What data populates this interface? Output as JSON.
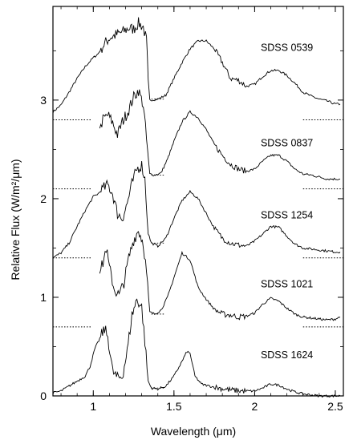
{
  "chart_data": {
    "type": "line",
    "xlabel": "Wavelength (μm)",
    "ylabel": "Relative Flux (W/m²/μm)",
    "xlim": [
      0.75,
      2.55
    ],
    "ylim": [
      0,
      3.95
    ],
    "x_ticks": [
      {
        "value": 1,
        "label": "1"
      },
      {
        "value": 1.5,
        "label": "1.5"
      },
      {
        "value": 2,
        "label": "2"
      },
      {
        "value": 2.5,
        "label": "2.5"
      }
    ],
    "y_ticks": [
      {
        "value": 0,
        "label": "0"
      },
      {
        "value": 1,
        "label": "1"
      },
      {
        "value": 2,
        "label": "2"
      },
      {
        "value": 3,
        "label": "3"
      }
    ],
    "grid": false,
    "legend": "none",
    "series": [
      {
        "name": "SDSS 0539",
        "offset": 2.8,
        "label_pos": [
          2.2,
          3.5
        ],
        "points": [
          [
            0.75,
            2.88
          ],
          [
            0.8,
            2.95
          ],
          [
            0.85,
            3.08
          ],
          [
            0.9,
            3.22
          ],
          [
            0.95,
            3.34
          ],
          [
            1.0,
            3.43
          ],
          [
            1.03,
            3.47
          ],
          [
            1.06,
            3.55
          ],
          [
            1.1,
            3.63
          ],
          [
            1.14,
            3.66
          ],
          [
            1.18,
            3.69
          ],
          [
            1.22,
            3.73
          ],
          [
            1.25,
            3.72
          ],
          [
            1.28,
            3.78
          ],
          [
            1.31,
            3.74
          ],
          [
            1.33,
            3.6
          ],
          [
            1.34,
            3.2
          ],
          [
            1.35,
            3.0
          ],
          [
            1.4,
            3.01
          ],
          [
            1.45,
            3.05
          ],
          [
            1.5,
            3.22
          ],
          [
            1.55,
            3.38
          ],
          [
            1.6,
            3.52
          ],
          [
            1.65,
            3.6
          ],
          [
            1.7,
            3.6
          ],
          [
            1.75,
            3.52
          ],
          [
            1.8,
            3.38
          ],
          [
            1.85,
            3.22
          ],
          [
            1.9,
            3.2
          ],
          [
            1.95,
            3.14
          ],
          [
            2.0,
            3.16
          ],
          [
            2.05,
            3.24
          ],
          [
            2.1,
            3.3
          ],
          [
            2.15,
            3.3
          ],
          [
            2.2,
            3.25
          ],
          [
            2.25,
            3.17
          ],
          [
            2.3,
            3.08
          ],
          [
            2.35,
            3.04
          ],
          [
            2.4,
            3.01
          ],
          [
            2.45,
            2.99
          ],
          [
            2.5,
            2.96
          ],
          [
            2.53,
            2.96
          ]
        ]
      },
      {
        "name": "SDSS 0837",
        "offset": 2.1,
        "label_pos": [
          2.2,
          2.53
        ],
        "points": [
          [
            1.04,
            2.72
          ],
          [
            1.06,
            2.8
          ],
          [
            1.09,
            2.85
          ],
          [
            1.12,
            2.77
          ],
          [
            1.15,
            2.65
          ],
          [
            1.18,
            2.78
          ],
          [
            1.22,
            2.9
          ],
          [
            1.25,
            3.03
          ],
          [
            1.28,
            3.1
          ],
          [
            1.31,
            2.95
          ],
          [
            1.33,
            2.6
          ],
          [
            1.35,
            2.25
          ],
          [
            1.38,
            2.24
          ],
          [
            1.42,
            2.26
          ],
          [
            1.46,
            2.4
          ],
          [
            1.5,
            2.58
          ],
          [
            1.55,
            2.78
          ],
          [
            1.6,
            2.88
          ],
          [
            1.65,
            2.82
          ],
          [
            1.7,
            2.7
          ],
          [
            1.75,
            2.55
          ],
          [
            1.8,
            2.44
          ],
          [
            1.85,
            2.35
          ],
          [
            1.9,
            2.3
          ],
          [
            1.95,
            2.28
          ],
          [
            2.0,
            2.3
          ],
          [
            2.05,
            2.38
          ],
          [
            2.1,
            2.44
          ],
          [
            2.15,
            2.44
          ],
          [
            2.2,
            2.38
          ],
          [
            2.25,
            2.3
          ],
          [
            2.3,
            2.25
          ],
          [
            2.35,
            2.24
          ],
          [
            2.4,
            2.22
          ],
          [
            2.45,
            2.2
          ],
          [
            2.5,
            2.2
          ],
          [
            2.53,
            2.2
          ]
        ]
      },
      {
        "name": "SDSS 1254",
        "offset": 1.4,
        "label_pos": [
          2.2,
          1.8
        ],
        "points": [
          [
            0.75,
            1.4
          ],
          [
            0.8,
            1.45
          ],
          [
            0.85,
            1.55
          ],
          [
            0.9,
            1.72
          ],
          [
            0.95,
            1.88
          ],
          [
            1.0,
            2.02
          ],
          [
            1.03,
            2.05
          ],
          [
            1.06,
            2.1
          ],
          [
            1.09,
            2.14
          ],
          [
            1.12,
            2.05
          ],
          [
            1.15,
            1.85
          ],
          [
            1.18,
            1.8
          ],
          [
            1.21,
            1.95
          ],
          [
            1.24,
            2.15
          ],
          [
            1.27,
            2.3
          ],
          [
            1.3,
            2.34
          ],
          [
            1.32,
            2.2
          ],
          [
            1.34,
            1.65
          ],
          [
            1.36,
            1.55
          ],
          [
            1.4,
            1.52
          ],
          [
            1.45,
            1.6
          ],
          [
            1.5,
            1.8
          ],
          [
            1.55,
            1.98
          ],
          [
            1.6,
            2.07
          ],
          [
            1.65,
            2.0
          ],
          [
            1.7,
            1.85
          ],
          [
            1.75,
            1.7
          ],
          [
            1.8,
            1.6
          ],
          [
            1.85,
            1.55
          ],
          [
            1.9,
            1.53
          ],
          [
            1.95,
            1.52
          ],
          [
            2.0,
            1.57
          ],
          [
            2.05,
            1.64
          ],
          [
            2.1,
            1.72
          ],
          [
            2.15,
            1.71
          ],
          [
            2.2,
            1.62
          ],
          [
            2.25,
            1.54
          ],
          [
            2.3,
            1.5
          ],
          [
            2.35,
            1.49
          ],
          [
            2.4,
            1.48
          ],
          [
            2.45,
            1.47
          ],
          [
            2.5,
            1.46
          ],
          [
            2.53,
            1.46
          ]
        ]
      },
      {
        "name": "SDSS 1021",
        "offset": 0.7,
        "label_pos": [
          2.2,
          1.1
        ],
        "points": [
          [
            1.04,
            1.25
          ],
          [
            1.06,
            1.35
          ],
          [
            1.08,
            1.5
          ],
          [
            1.1,
            1.3
          ],
          [
            1.13,
            1.08
          ],
          [
            1.16,
            1.02
          ],
          [
            1.19,
            1.15
          ],
          [
            1.22,
            1.4
          ],
          [
            1.25,
            1.58
          ],
          [
            1.28,
            1.68
          ],
          [
            1.31,
            1.55
          ],
          [
            1.33,
            1.25
          ],
          [
            1.35,
            0.85
          ],
          [
            1.38,
            0.83
          ],
          [
            1.42,
            0.87
          ],
          [
            1.46,
            1.0
          ],
          [
            1.5,
            1.2
          ],
          [
            1.55,
            1.45
          ],
          [
            1.6,
            1.38
          ],
          [
            1.65,
            1.1
          ],
          [
            1.7,
            0.98
          ],
          [
            1.75,
            0.88
          ],
          [
            1.8,
            0.83
          ],
          [
            1.85,
            0.82
          ],
          [
            1.9,
            0.8
          ],
          [
            1.95,
            0.81
          ],
          [
            2.0,
            0.84
          ],
          [
            2.05,
            0.93
          ],
          [
            2.1,
            0.99
          ],
          [
            2.15,
            0.96
          ],
          [
            2.2,
            0.89
          ],
          [
            2.25,
            0.83
          ],
          [
            2.3,
            0.8
          ],
          [
            2.35,
            0.79
          ],
          [
            2.4,
            0.78
          ],
          [
            2.45,
            0.77
          ],
          [
            2.5,
            0.78
          ],
          [
            2.53,
            0.8
          ]
        ]
      },
      {
        "name": "SDSS 1624",
        "offset": 0.0,
        "label_pos": [
          2.2,
          0.38
        ],
        "points": [
          [
            0.75,
            0.03
          ],
          [
            0.8,
            0.05
          ],
          [
            0.85,
            0.1
          ],
          [
            0.9,
            0.15
          ],
          [
            0.95,
            0.2
          ],
          [
            0.98,
            0.3
          ],
          [
            1.01,
            0.48
          ],
          [
            1.04,
            0.58
          ],
          [
            1.07,
            0.68
          ],
          [
            1.09,
            0.6
          ],
          [
            1.12,
            0.25
          ],
          [
            1.15,
            0.18
          ],
          [
            1.18,
            0.2
          ],
          [
            1.21,
            0.45
          ],
          [
            1.24,
            0.82
          ],
          [
            1.27,
            0.98
          ],
          [
            1.3,
            0.9
          ],
          [
            1.32,
            0.55
          ],
          [
            1.34,
            0.15
          ],
          [
            1.36,
            0.08
          ],
          [
            1.4,
            0.07
          ],
          [
            1.45,
            0.1
          ],
          [
            1.5,
            0.2
          ],
          [
            1.55,
            0.35
          ],
          [
            1.58,
            0.45
          ],
          [
            1.6,
            0.43
          ],
          [
            1.63,
            0.2
          ],
          [
            1.67,
            0.12
          ],
          [
            1.72,
            0.1
          ],
          [
            1.78,
            0.08
          ],
          [
            1.85,
            0.06
          ],
          [
            1.92,
            0.05
          ],
          [
            2.0,
            0.05
          ],
          [
            2.05,
            0.08
          ],
          [
            2.1,
            0.12
          ],
          [
            2.15,
            0.11
          ],
          [
            2.2,
            0.07
          ],
          [
            2.25,
            0.04
          ],
          [
            2.3,
            0.02
          ],
          [
            2.35,
            0.01
          ],
          [
            2.4,
            0.0
          ],
          [
            2.45,
            0.0
          ],
          [
            2.5,
            0.0
          ],
          [
            2.53,
            0.0
          ]
        ]
      }
    ]
  }
}
